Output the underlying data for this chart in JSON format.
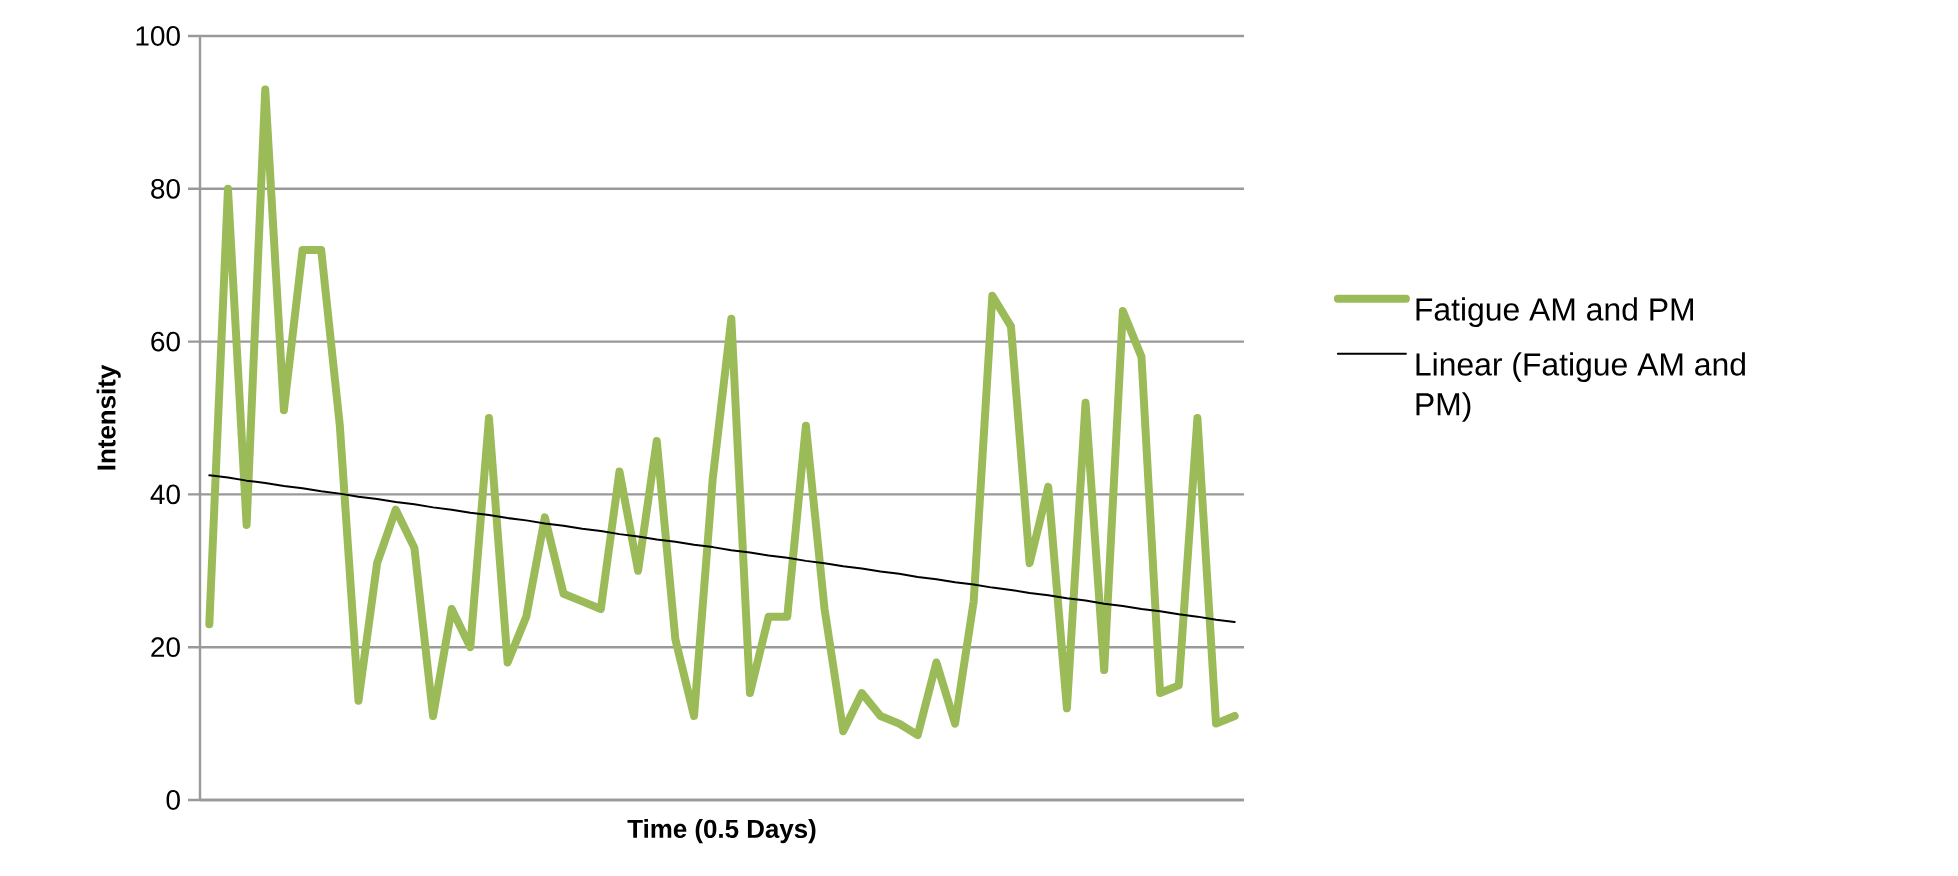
{
  "chart_data": {
    "type": "line",
    "xlabel": "Time (0.5  Days)",
    "ylabel": "Intensity",
    "categories": [
      null,
      null,
      null,
      null,
      null,
      null,
      null,
      null,
      null,
      null,
      null,
      null,
      null,
      null,
      null,
      null,
      null,
      null,
      null,
      null,
      null,
      null,
      null,
      null,
      null,
      null,
      null,
      null,
      null,
      null,
      null,
      null,
      null,
      null,
      null,
      null,
      null,
      null,
      null,
      null,
      null,
      null,
      null,
      null,
      null,
      null,
      null,
      null,
      null,
      null,
      null,
      null,
      null,
      null,
      null,
      null
    ],
    "ylim": [
      0,
      100
    ],
    "yticks": [
      0,
      20,
      40,
      60,
      80,
      100
    ],
    "grid": "y",
    "legend": "right",
    "marker": "none",
    "series": [
      {
        "name": "Fatigue AM and PM",
        "color": "#9bbb59",
        "values": [
          23,
          80,
          36,
          93,
          51,
          72,
          72,
          49,
          13,
          31,
          38,
          33,
          11,
          25,
          20,
          50,
          18,
          24,
          37,
          27,
          26,
          25,
          43,
          30,
          47,
          21,
          11,
          42,
          63,
          14,
          24,
          24,
          49,
          25,
          9,
          14,
          11,
          10,
          8.5,
          18,
          10,
          26,
          66,
          62,
          31,
          41,
          12,
          52,
          17,
          64,
          58,
          14,
          15,
          50,
          10,
          11
        ]
      },
      {
        "name": "Linear (Fatigue AM and PM)",
        "color": "#000000",
        "values": [
          42.5,
          42.2,
          41.8,
          41.5,
          41.1,
          40.8,
          40.4,
          40.1,
          39.7,
          39.4,
          39.0,
          38.7,
          38.3,
          38.0,
          37.6,
          37.3,
          36.9,
          36.6,
          36.2,
          35.9,
          35.5,
          35.2,
          34.8,
          34.5,
          34.1,
          33.8,
          33.4,
          33.1,
          32.7,
          32.4,
          32.0,
          31.7,
          31.3,
          31.0,
          30.6,
          30.3,
          29.9,
          29.6,
          29.2,
          28.9,
          28.5,
          28.2,
          27.8,
          27.5,
          27.1,
          26.8,
          26.4,
          26.1,
          25.7,
          25.4,
          25.0,
          24.7,
          24.3,
          24.0,
          23.6,
          23.3
        ]
      }
    ]
  }
}
